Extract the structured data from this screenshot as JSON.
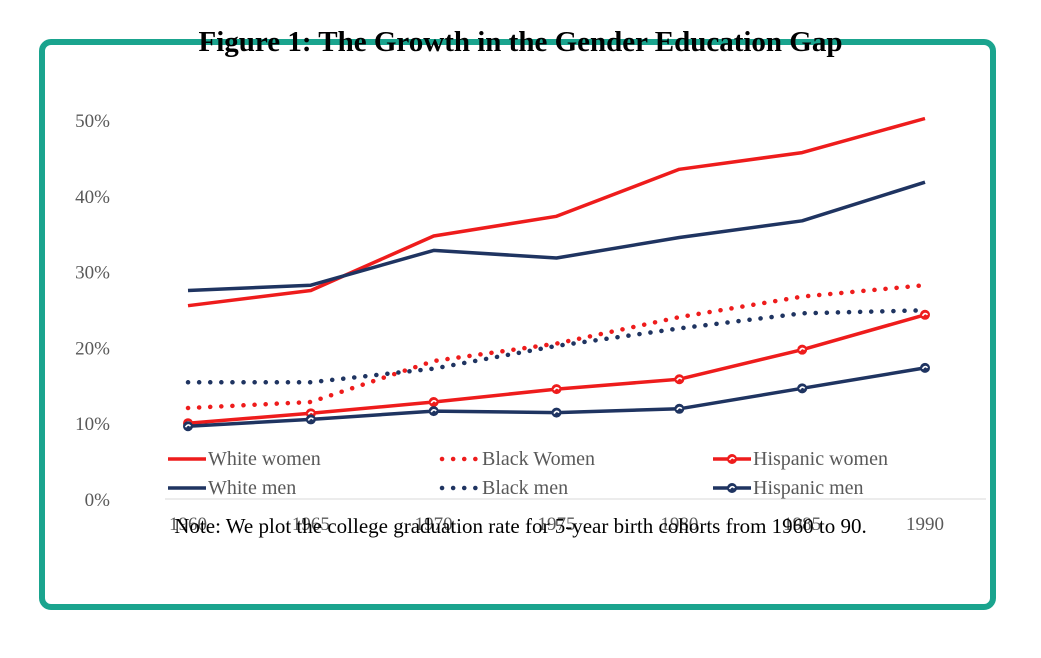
{
  "colors": {
    "frame": "#1aa48e",
    "red": "#ee1c1c",
    "navy": "#1f3461",
    "tick": "#595959"
  },
  "chart_data": {
    "type": "line",
    "title": "Figure 1: The Growth in the Gender Education Gap",
    "note": "Note: We plot the college graduation rate for 5-year birth cohorts from 1960 to 90.",
    "x": [
      1960,
      1965,
      1970,
      1975,
      1980,
      1985,
      1990
    ],
    "x_tick_labels": [
      "1960",
      "1965",
      "1970",
      "1975",
      "1980",
      "1985",
      "1990"
    ],
    "ylim": [
      0,
      50
    ],
    "y_ticks": [
      0,
      10,
      20,
      30,
      40,
      50
    ],
    "y_tick_labels": [
      "0%",
      "10%",
      "20%",
      "30%",
      "40%",
      "50%"
    ],
    "grid": false,
    "legend_position": "bottom",
    "series": [
      {
        "name": "White women",
        "color": "#ee1c1c",
        "style": "solid",
        "marker": false,
        "values": [
          25.5,
          27.5,
          34.7,
          37.3,
          43.5,
          45.7,
          50.2
        ]
      },
      {
        "name": "Black Women",
        "color": "#ee1c1c",
        "style": "dotted",
        "marker": false,
        "values": [
          12.0,
          12.8,
          18.2,
          20.5,
          24.0,
          26.7,
          28.2
        ]
      },
      {
        "name": "Hispanic women",
        "color": "#ee1c1c",
        "style": "solid",
        "marker": true,
        "values": [
          10.0,
          11.3,
          12.8,
          14.5,
          15.8,
          19.7,
          24.3
        ]
      },
      {
        "name": "White men",
        "color": "#1f3461",
        "style": "solid",
        "marker": false,
        "values": [
          27.5,
          28.2,
          32.8,
          31.8,
          34.5,
          36.7,
          41.8
        ]
      },
      {
        "name": "Black men",
        "color": "#1f3461",
        "style": "dotted",
        "marker": false,
        "values": [
          15.4,
          15.4,
          17.2,
          20.2,
          22.5,
          24.5,
          24.9
        ]
      },
      {
        "name": "Hispanic men",
        "color": "#1f3461",
        "style": "solid",
        "marker": true,
        "values": [
          9.6,
          10.5,
          11.6,
          11.4,
          11.9,
          14.6,
          17.3
        ]
      }
    ]
  }
}
